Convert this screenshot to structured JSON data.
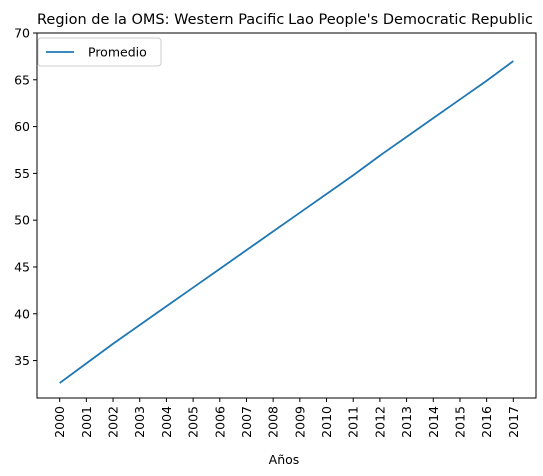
{
  "chart_data": {
    "type": "line",
    "title_left": "Region de la OMS: Western Pacific",
    "title_right": "Lao People's Democratic Republic",
    "xlabel": "Años",
    "ylabel": "",
    "x": [
      2000,
      2001,
      2002,
      2003,
      2004,
      2005,
      2006,
      2007,
      2008,
      2009,
      2010,
      2011,
      2012,
      2013,
      2014,
      2015,
      2016,
      2017
    ],
    "x_tick_labels": [
      "2000",
      "2001",
      "2002",
      "2003",
      "2004",
      "2005",
      "2006",
      "2007",
      "2008",
      "2009",
      "2010",
      "2011",
      "2012",
      "2013",
      "2014",
      "2015",
      "2016",
      "2017"
    ],
    "y_ticks": [
      35,
      40,
      45,
      50,
      55,
      60,
      65,
      70
    ],
    "ylim": [
      31,
      70
    ],
    "series": [
      {
        "name": "Promedio",
        "color": "#1f77b4",
        "values": [
          32.6,
          34.7,
          36.8,
          38.8,
          40.8,
          42.8,
          44.8,
          46.8,
          48.8,
          50.8,
          52.8,
          54.8,
          56.9,
          58.9,
          60.9,
          62.9,
          64.9,
          67.0
        ]
      }
    ],
    "legend_position": "top-left",
    "grid": false
  }
}
